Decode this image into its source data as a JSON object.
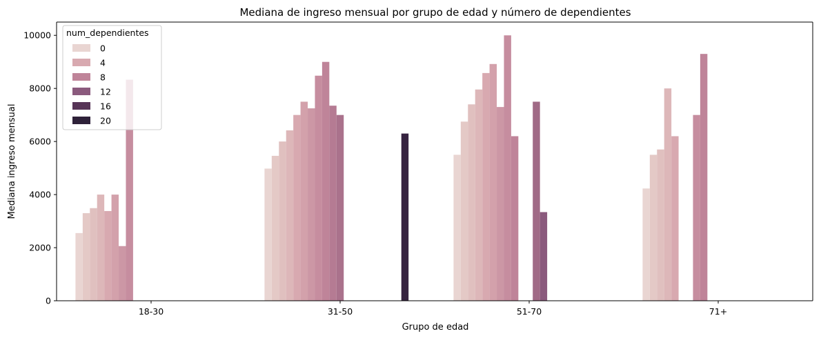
{
  "chart_data": {
    "type": "bar",
    "title": "Mediana de ingreso mensual por grupo de edad y número de dependientes",
    "xlabel": "Grupo de edad",
    "ylabel": "Mediana ingreso mensual",
    "categories": [
      "18-30",
      "31-50",
      "51-70",
      "71+"
    ],
    "ylim": [
      0,
      10500
    ],
    "yticks": [
      0,
      2000,
      4000,
      6000,
      8000,
      10000
    ],
    "grid": false,
    "legend": {
      "title": "num_dependientes",
      "placement": "top-left",
      "entries": [
        {
          "label": "0",
          "color": "#e9d5d2"
        },
        {
          "label": "4",
          "color": "#d8a9b0"
        },
        {
          "label": "8",
          "color": "#bf8499"
        },
        {
          "label": "12",
          "color": "#8b5a7d"
        },
        {
          "label": "16",
          "color": "#573557"
        },
        {
          "label": "20",
          "color": "#2e2139"
        }
      ]
    },
    "hue_levels": [
      0,
      1,
      2,
      3,
      4,
      5,
      6,
      7,
      8,
      9,
      10,
      11,
      12,
      13,
      14,
      15,
      16,
      17,
      18,
      19,
      20
    ],
    "series": [
      {
        "dependents": 0,
        "color": "#e9d5d2",
        "values": [
          2550,
          4980,
          5500,
          4230
        ]
      },
      {
        "dependents": 1,
        "color": "#e4c9c6",
        "values": [
          3300,
          5460,
          6750,
          5500
        ]
      },
      {
        "dependents": 2,
        "color": "#e0c0bf",
        "values": [
          3490,
          6000,
          7400,
          5700
        ]
      },
      {
        "dependents": 3,
        "color": "#ddb7b9",
        "values": [
          4000,
          6420,
          7960,
          8000
        ]
      },
      {
        "dependents": 4,
        "color": "#d8a9b0",
        "values": [
          3380,
          7000,
          8580,
          6200
        ]
      },
      {
        "dependents": 5,
        "color": "#d3a1ab",
        "values": [
          4000,
          7500,
          8920,
          null
        ]
      },
      {
        "dependents": 6,
        "color": "#cc97a5",
        "values": [
          2060,
          7250,
          7300,
          null
        ]
      },
      {
        "dependents": 7,
        "color": "#c68d9f",
        "values": [
          8330,
          8480,
          10000,
          7000
        ]
      },
      {
        "dependents": 8,
        "color": "#bf8499",
        "values": [
          null,
          9000,
          6200,
          9300
        ]
      },
      {
        "dependents": 9,
        "color": "#b57b93",
        "values": [
          null,
          7350,
          null,
          null
        ]
      },
      {
        "dependents": 10,
        "color": "#aa728c",
        "values": [
          null,
          7000,
          null,
          null
        ]
      },
      {
        "dependents": 11,
        "color": "#a06a86",
        "values": [
          null,
          null,
          7500,
          null
        ]
      },
      {
        "dependents": 12,
        "color": "#8b5a7d",
        "values": [
          null,
          null,
          3340,
          null
        ]
      },
      {
        "dependents": 13,
        "color": "#7c4f74",
        "values": [
          null,
          null,
          null,
          null
        ]
      },
      {
        "dependents": 14,
        "color": "#6d4469",
        "values": [
          null,
          null,
          null,
          null
        ]
      },
      {
        "dependents": 15,
        "color": "#623c60",
        "values": [
          null,
          null,
          null,
          null
        ]
      },
      {
        "dependents": 16,
        "color": "#573557",
        "values": [
          null,
          null,
          null,
          null
        ]
      },
      {
        "dependents": 17,
        "color": "#4a2d4d",
        "values": [
          null,
          null,
          null,
          null
        ]
      },
      {
        "dependents": 18,
        "color": "#3f2745",
        "values": [
          null,
          null,
          null,
          null
        ]
      },
      {
        "dependents": 19,
        "color": "#362340",
        "values": [
          null,
          6300,
          null,
          null
        ]
      },
      {
        "dependents": 20,
        "color": "#2e2139",
        "values": [
          null,
          null,
          null,
          null
        ]
      }
    ]
  }
}
